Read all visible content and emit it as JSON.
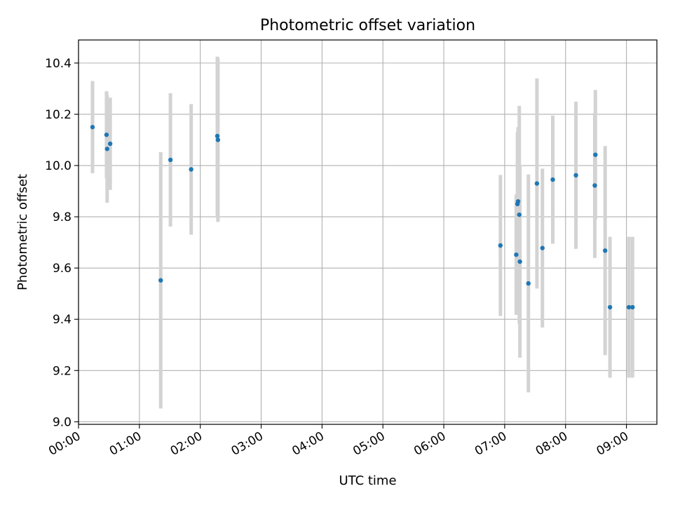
{
  "chart_data": {
    "type": "scatter",
    "title": "Photometric offset variation",
    "xlabel": "UTC time",
    "ylabel": "Photometric offset",
    "x_unit": "hours",
    "xlim": [
      0.0,
      9.5
    ],
    "ylim": [
      8.99,
      10.49
    ],
    "x_ticks": [
      {
        "value": 0,
        "label": "00:00"
      },
      {
        "value": 1,
        "label": "01:00"
      },
      {
        "value": 2,
        "label": "02:00"
      },
      {
        "value": 3,
        "label": "03:00"
      },
      {
        "value": 4,
        "label": "04:00"
      },
      {
        "value": 5,
        "label": "05:00"
      },
      {
        "value": 6,
        "label": "06:00"
      },
      {
        "value": 7,
        "label": "07:00"
      },
      {
        "value": 8,
        "label": "08:00"
      },
      {
        "value": 9,
        "label": "09:00"
      }
    ],
    "y_ticks": [
      {
        "value": 9.0,
        "label": "9.0"
      },
      {
        "value": 9.2,
        "label": "9.2"
      },
      {
        "value": 9.4,
        "label": "9.4"
      },
      {
        "value": 9.6,
        "label": "9.6"
      },
      {
        "value": 9.8,
        "label": "9.8"
      },
      {
        "value": 10.0,
        "label": "10.0"
      },
      {
        "value": 10.2,
        "label": "10.2"
      },
      {
        "value": 10.4,
        "label": "10.4"
      }
    ],
    "grid": true,
    "colors": {
      "point": "#1f77b4",
      "errorbar": "#d3d3d3",
      "grid": "#b0b0b0"
    },
    "points": [
      {
        "x": 0.23,
        "y": 10.15,
        "err": 0.18
      },
      {
        "x": 0.46,
        "y": 10.12,
        "err": 0.17
      },
      {
        "x": 0.47,
        "y": 10.065,
        "err": 0.21
      },
      {
        "x": 0.52,
        "y": 10.085,
        "err": 0.18
      },
      {
        "x": 1.35,
        "y": 9.552,
        "err": 0.5
      },
      {
        "x": 1.51,
        "y": 10.022,
        "err": 0.26
      },
      {
        "x": 1.85,
        "y": 9.985,
        "err": 0.255
      },
      {
        "x": 2.28,
        "y": 10.115,
        "err": 0.31
      },
      {
        "x": 2.29,
        "y": 10.1,
        "err": 0.32
      },
      {
        "x": 6.93,
        "y": 9.688,
        "err": 0.275
      },
      {
        "x": 7.19,
        "y": 9.652,
        "err": 0.235
      },
      {
        "x": 7.21,
        "y": 9.85,
        "err": 0.28
      },
      {
        "x": 7.22,
        "y": 9.86,
        "err": 0.29
      },
      {
        "x": 7.24,
        "y": 9.808,
        "err": 0.425
      },
      {
        "x": 7.25,
        "y": 9.625,
        "err": 0.375
      },
      {
        "x": 7.39,
        "y": 9.54,
        "err": 0.425
      },
      {
        "x": 7.53,
        "y": 9.93,
        "err": 0.41
      },
      {
        "x": 7.62,
        "y": 9.678,
        "err": 0.31
      },
      {
        "x": 7.79,
        "y": 9.945,
        "err": 0.25
      },
      {
        "x": 8.17,
        "y": 9.962,
        "err": 0.287
      },
      {
        "x": 8.48,
        "y": 9.922,
        "err": 0.283
      },
      {
        "x": 8.49,
        "y": 10.042,
        "err": 0.253
      },
      {
        "x": 8.65,
        "y": 9.668,
        "err": 0.408
      },
      {
        "x": 8.73,
        "y": 9.447,
        "err": 0.275
      },
      {
        "x": 9.04,
        "y": 9.447,
        "err": 0.275
      },
      {
        "x": 9.1,
        "y": 9.447,
        "err": 0.275
      }
    ]
  }
}
